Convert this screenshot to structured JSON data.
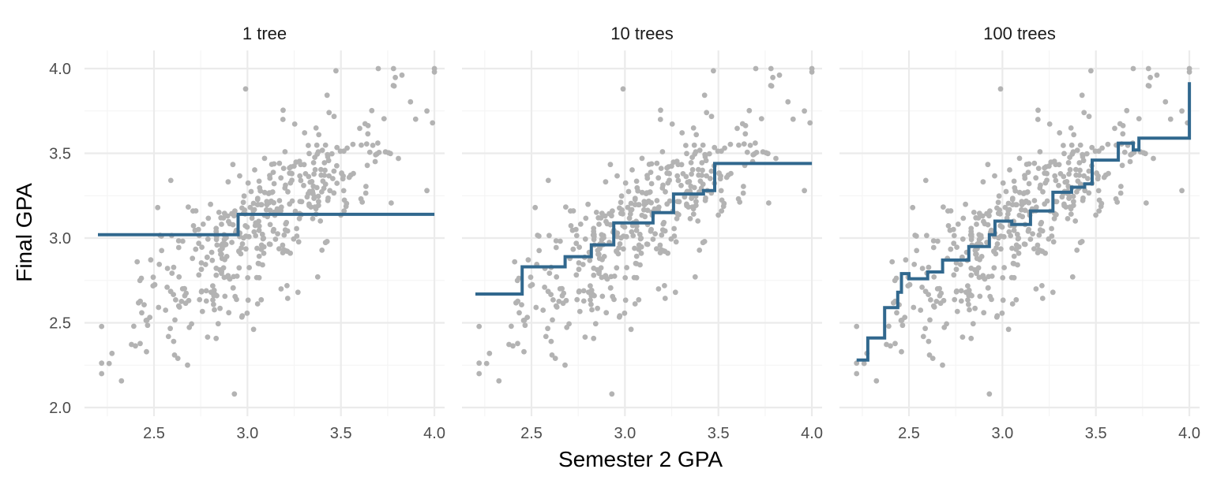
{
  "chart_data": {
    "type": "scatter",
    "xlabel": "Semester 2 GPA",
    "ylabel": "Final GPA",
    "xlim": [
      2.2,
      4.0
    ],
    "ylim": [
      2.0,
      4.0
    ],
    "x_ticks": [
      "2.5",
      "3.0",
      "3.5",
      "4.0"
    ],
    "y_ticks": [
      "2.0",
      "2.5",
      "3.0",
      "3.5",
      "4.0"
    ],
    "grid": true,
    "colors": {
      "points": "#b3b3b3",
      "fit": "#31688e"
    },
    "panels": [
      {
        "title": "1 tree",
        "fit_steps": [
          [
            2.2,
            3.02
          ],
          [
            2.95,
            3.14
          ],
          [
            4.0,
            3.14
          ]
        ]
      },
      {
        "title": "10 trees",
        "fit_steps": [
          [
            2.2,
            2.67
          ],
          [
            2.45,
            2.83
          ],
          [
            2.68,
            2.89
          ],
          [
            2.82,
            2.96
          ],
          [
            2.94,
            3.09
          ],
          [
            3.15,
            3.15
          ],
          [
            3.26,
            3.26
          ],
          [
            3.42,
            3.28
          ],
          [
            3.48,
            3.44
          ],
          [
            4.0,
            3.44
          ]
        ]
      },
      {
        "title": "100 trees",
        "fit_steps": [
          [
            2.22,
            2.28
          ],
          [
            2.28,
            2.41
          ],
          [
            2.37,
            2.59
          ],
          [
            2.44,
            2.68
          ],
          [
            2.46,
            2.79
          ],
          [
            2.5,
            2.76
          ],
          [
            2.6,
            2.8
          ],
          [
            2.68,
            2.87
          ],
          [
            2.82,
            2.95
          ],
          [
            2.93,
            3.02
          ],
          [
            2.96,
            3.1
          ],
          [
            3.05,
            3.08
          ],
          [
            3.15,
            3.16
          ],
          [
            3.27,
            3.27
          ],
          [
            3.37,
            3.3
          ],
          [
            3.44,
            3.32
          ],
          [
            3.48,
            3.46
          ],
          [
            3.62,
            3.56
          ],
          [
            3.7,
            3.52
          ],
          [
            3.73,
            3.59
          ],
          [
            4.0,
            3.92
          ]
        ]
      }
    ]
  }
}
